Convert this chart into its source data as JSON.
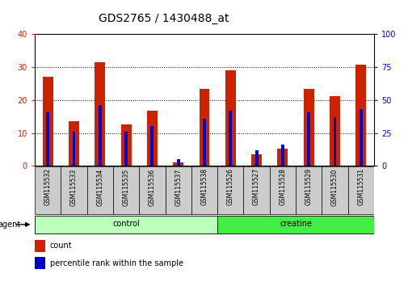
{
  "title": "GDS2765 / 1430488_at",
  "samples": [
    "GSM115532",
    "GSM115533",
    "GSM115534",
    "GSM115535",
    "GSM115536",
    "GSM115537",
    "GSM115538",
    "GSM115526",
    "GSM115527",
    "GSM115528",
    "GSM115529",
    "GSM115530",
    "GSM115531"
  ],
  "count_values": [
    27,
    13.5,
    31.5,
    12.5,
    16.8,
    1.0,
    23.3,
    29.0,
    3.5,
    5.2,
    23.3,
    21.2,
    30.8
  ],
  "percentile_values": [
    41,
    26,
    46,
    26,
    30,
    5,
    36,
    42,
    12,
    16,
    41,
    37,
    43
  ],
  "groups": [
    {
      "label": "control",
      "start": 0,
      "end": 7,
      "color": "#bbffbb"
    },
    {
      "label": "creatine",
      "start": 7,
      "end": 13,
      "color": "#44ee44"
    }
  ],
  "ylim_left": [
    0,
    40
  ],
  "ylim_right": [
    0,
    100
  ],
  "yticks_left": [
    0,
    10,
    20,
    30,
    40
  ],
  "yticks_right": [
    0,
    25,
    50,
    75,
    100
  ],
  "bar_width": 0.4,
  "perc_bar_width": 0.12,
  "count_color": "#cc2200",
  "percentile_color": "#0000cc",
  "plot_bg_color": "#ffffff",
  "tick_bg_color": "#cccccc",
  "title_fontsize": 10,
  "agent_label": "agent"
}
